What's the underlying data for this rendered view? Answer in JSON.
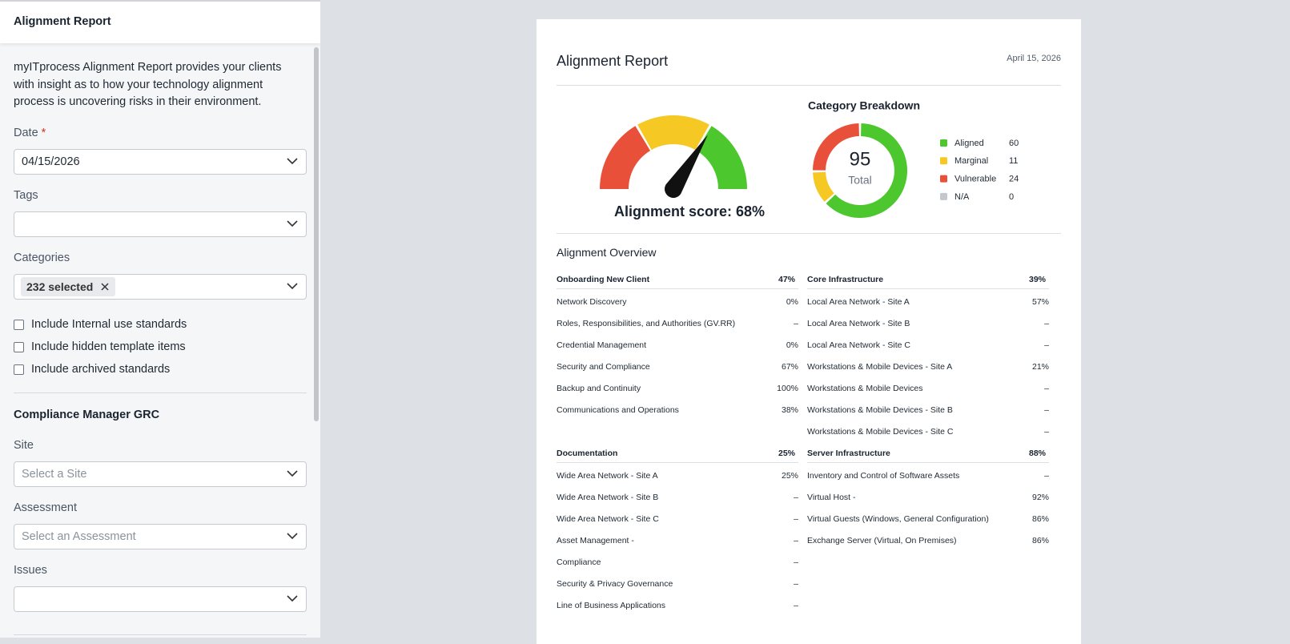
{
  "sidebar": {
    "title": "Alignment Report",
    "description": "myITprocess Alignment Report provides your clients with insight as to how your technology alignment process is uncovering risks in their environment.",
    "date_label": "Date",
    "date_required": "*",
    "date_value": "04/15/2026",
    "tags_label": "Tags",
    "categories_label": "Categories",
    "categories_chip": "232 selected",
    "checkboxes": [
      "Include Internal use standards",
      "Include hidden template items",
      "Include archived standards"
    ],
    "section_title": "Compliance Manager GRC",
    "site_label": "Site",
    "site_placeholder": "Select a Site",
    "assessment_label": "Assessment",
    "assessment_placeholder": "Select an Assessment",
    "issues_label": "Issues"
  },
  "report": {
    "title": "Alignment Report",
    "date": "April 15, 2026",
    "gauge": {
      "score": 68,
      "label": "Alignment score: 68%"
    },
    "breakdown": {
      "title": "Category Breakdown",
      "total": 95,
      "total_label": "Total",
      "categories": [
        "Aligned",
        "Marginal",
        "Vulnerable",
        "N/A"
      ],
      "values": [
        60,
        11,
        24,
        0
      ],
      "colors": [
        "#4cc72e",
        "#f5c823",
        "#e8503a",
        "#c4c8cc"
      ]
    },
    "overview": {
      "title": "Alignment Overview",
      "sections": [
        {
          "name": "Onboarding New Client",
          "value": "47%",
          "rows": [
            [
              "Network Discovery",
              "0%"
            ],
            [
              "Roles, Responsibilities, and Authorities (GV.RR)",
              "–"
            ],
            [
              "Credential Management",
              "0%"
            ],
            [
              "Security and Compliance",
              "67%"
            ],
            [
              "Backup and Continuity",
              "100%"
            ],
            [
              "Communications and Operations",
              "38%"
            ]
          ]
        },
        {
          "name": "Core Infrastructure",
          "value": "39%",
          "rows": [
            [
              "Local Area Network - Site A",
              "57%"
            ],
            [
              "Local Area Network - Site B",
              "–"
            ],
            [
              "Local Area Network - Site C",
              "–"
            ],
            [
              "Workstations & Mobile Devices - Site A",
              "21%"
            ],
            [
              "Workstations & Mobile Devices",
              "–"
            ],
            [
              "Workstations & Mobile Devices - Site B",
              "–"
            ],
            [
              "Workstations & Mobile Devices - Site C",
              "–"
            ]
          ]
        },
        {
          "name": "Documentation",
          "value": "25%",
          "rows": [
            [
              "Wide Area Network - Site A",
              "25%"
            ],
            [
              "Wide Area Network - Site B",
              "–"
            ],
            [
              "Wide Area Network - Site C",
              "–"
            ],
            [
              "Asset Management -",
              "–"
            ],
            [
              "Compliance",
              "–"
            ],
            [
              "Security & Privacy Governance",
              "–"
            ],
            [
              "Line of Business Applications",
              "–"
            ]
          ]
        },
        {
          "name": "Server Infrastructure",
          "value": "88%",
          "rows": [
            [
              "Inventory and Control of Software Assets",
              "–"
            ],
            [
              "Virtual Host -",
              "92%"
            ],
            [
              "Virtual Guests (Windows, General Configuration)",
              "86%"
            ],
            [
              "Exchange Server (Virtual, On Premises)",
              "86%"
            ]
          ]
        }
      ]
    }
  }
}
